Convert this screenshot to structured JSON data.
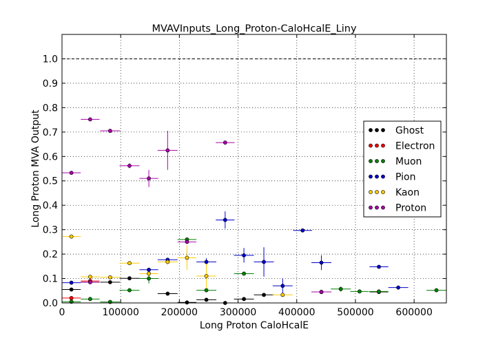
{
  "chart_data": {
    "type": "scatter",
    "title": "MVAVInputs_Long_Proton-CaloHcalE_Liny",
    "xlabel": "Long Proton CaloHcalE",
    "ylabel": "Long Proton MVA Output",
    "xlim": [
      0,
      655000
    ],
    "ylim": [
      0,
      1.1
    ],
    "xticks": [
      0,
      100000,
      200000,
      300000,
      400000,
      500000,
      600000
    ],
    "xtick_labels": [
      "0",
      "100000",
      "200000",
      "300000",
      "400000",
      "500000",
      "600000"
    ],
    "yticks": [
      0,
      0.1,
      0.2,
      0.3,
      0.4,
      0.5,
      0.6,
      0.7,
      0.8,
      0.9,
      1.0
    ],
    "ytick_labels": [
      "0.0",
      "0.1",
      "0.2",
      "0.3",
      "0.4",
      "0.5",
      "0.6",
      "0.7",
      "0.8",
      "0.9",
      "1.0"
    ],
    "grid": true,
    "reference_line": 1.0,
    "legend_position": "right",
    "series": [
      {
        "name": "Ghost",
        "color": "#000000",
        "points": [
          {
            "x": 16000,
            "y": 0.055,
            "xerr": 16000,
            "yerr": 0.004
          },
          {
            "x": 48000,
            "y": 0.085,
            "xerr": 16000,
            "yerr": 0.005
          },
          {
            "x": 82000,
            "y": 0.085,
            "xerr": 17000,
            "yerr": 0.006
          },
          {
            "x": 115000,
            "y": 0.101,
            "xerr": 17000,
            "yerr": 0.006
          },
          {
            "x": 180000,
            "y": 0.038,
            "xerr": 17000,
            "yerr": 0.005
          },
          {
            "x": 213000,
            "y": 0.002,
            "xerr": 16000,
            "yerr": 0.003
          },
          {
            "x": 246000,
            "y": 0.013,
            "xerr": 17000,
            "yerr": 0.004
          },
          {
            "x": 278000,
            "y": 0.0,
            "xerr": 16000,
            "yerr": 0.003
          },
          {
            "x": 310000,
            "y": 0.016,
            "xerr": 17000,
            "yerr": 0.004
          },
          {
            "x": 344000,
            "y": 0.033,
            "xerr": 17000,
            "yerr": 0.004
          },
          {
            "x": 442000,
            "y": 0.045,
            "xerr": 17000,
            "yerr": 0.004
          },
          {
            "x": 540000,
            "y": 0.045,
            "xerr": 16000,
            "yerr": 0.004
          }
        ]
      },
      {
        "name": "Electron",
        "color": "#ff0000",
        "points": [
          {
            "x": 16000,
            "y": 0.02,
            "xerr": 16000,
            "yerr": 0.006
          },
          {
            "x": 48000,
            "y": 0.09,
            "xerr": 16000,
            "yerr": 0.012
          },
          {
            "x": 442000,
            "y": 0.045,
            "xerr": 17000,
            "yerr": 0.004
          }
        ]
      },
      {
        "name": "Muon",
        "color": "#008000",
        "points": [
          {
            "x": 16000,
            "y": 0.005,
            "xerr": 16000,
            "yerr": 0.003
          },
          {
            "x": 48000,
            "y": 0.016,
            "xerr": 16000,
            "yerr": 0.004
          },
          {
            "x": 82000,
            "y": 0.004,
            "xerr": 17000,
            "yerr": 0.003
          },
          {
            "x": 115000,
            "y": 0.052,
            "xerr": 17000,
            "yerr": 0.006
          },
          {
            "x": 148000,
            "y": 0.1,
            "xerr": 16000,
            "yerr": 0.02
          },
          {
            "x": 213000,
            "y": 0.26,
            "xerr": 16000,
            "yerr": 0.008
          },
          {
            "x": 246000,
            "y": 0.052,
            "xerr": 17000,
            "yerr": 0.006
          },
          {
            "x": 310000,
            "y": 0.12,
            "xerr": 17000,
            "yerr": 0.005
          },
          {
            "x": 475000,
            "y": 0.057,
            "xerr": 17000,
            "yerr": 0.01
          },
          {
            "x": 507000,
            "y": 0.047,
            "xerr": 16000,
            "yerr": 0.004
          },
          {
            "x": 540000,
            "y": 0.047,
            "xerr": 16000,
            "yerr": 0.004
          },
          {
            "x": 638000,
            "y": 0.052,
            "xerr": 17000,
            "yerr": 0.004
          }
        ]
      },
      {
        "name": "Pion",
        "color": "#0000cc",
        "points": [
          {
            "x": 16000,
            "y": 0.083,
            "xerr": 16000,
            "yerr": 0.004
          },
          {
            "x": 148000,
            "y": 0.136,
            "xerr": 16000,
            "yerr": 0.006
          },
          {
            "x": 180000,
            "y": 0.177,
            "xerr": 17000,
            "yerr": 0.006
          },
          {
            "x": 246000,
            "y": 0.168,
            "xerr": 17000,
            "yerr": 0.015
          },
          {
            "x": 278000,
            "y": 0.34,
            "xerr": 16000,
            "yerr": 0.035
          },
          {
            "x": 310000,
            "y": 0.195,
            "xerr": 17000,
            "yerr": 0.03
          },
          {
            "x": 344000,
            "y": 0.168,
            "xerr": 17000,
            "yerr": 0.06
          },
          {
            "x": 376000,
            "y": 0.07,
            "xerr": 17000,
            "yerr": 0.03
          },
          {
            "x": 410000,
            "y": 0.297,
            "xerr": 16000,
            "yerr": 0.004
          },
          {
            "x": 442000,
            "y": 0.165,
            "xerr": 17000,
            "yerr": 0.03
          },
          {
            "x": 540000,
            "y": 0.148,
            "xerr": 16000,
            "yerr": 0.005
          },
          {
            "x": 573000,
            "y": 0.063,
            "xerr": 17000,
            "yerr": 0.004
          }
        ]
      },
      {
        "name": "Kaon",
        "color": "#ffcc00",
        "points": [
          {
            "x": 16000,
            "y": 0.272,
            "xerr": 16000,
            "yerr": 0.004
          },
          {
            "x": 48000,
            "y": 0.107,
            "xerr": 16000,
            "yerr": 0.006
          },
          {
            "x": 82000,
            "y": 0.105,
            "xerr": 17000,
            "yerr": 0.006
          },
          {
            "x": 115000,
            "y": 0.163,
            "xerr": 17000,
            "yerr": 0.006
          },
          {
            "x": 148000,
            "y": 0.12,
            "xerr": 16000,
            "yerr": 0.006
          },
          {
            "x": 180000,
            "y": 0.168,
            "xerr": 17000,
            "yerr": 0.01
          },
          {
            "x": 213000,
            "y": 0.185,
            "xerr": 16000,
            "yerr": 0.05
          },
          {
            "x": 246000,
            "y": 0.11,
            "xerr": 17000,
            "yerr": 0.05
          },
          {
            "x": 376000,
            "y": 0.033,
            "xerr": 17000,
            "yerr": 0.004
          }
        ]
      },
      {
        "name": "Proton",
        "color": "#aa00aa",
        "points": [
          {
            "x": 16000,
            "y": 0.533,
            "xerr": 16000,
            "yerr": 0.004
          },
          {
            "x": 48000,
            "y": 0.752,
            "xerr": 16000,
            "yerr": 0.004
          },
          {
            "x": 48000,
            "y": 0.085,
            "xerr": 16000,
            "yerr": 0.004
          },
          {
            "x": 82000,
            "y": 0.705,
            "xerr": 17000,
            "yerr": 0.004
          },
          {
            "x": 115000,
            "y": 0.562,
            "xerr": 17000,
            "yerr": 0.01
          },
          {
            "x": 148000,
            "y": 0.51,
            "xerr": 16000,
            "yerr": 0.035
          },
          {
            "x": 180000,
            "y": 0.625,
            "xerr": 17000,
            "yerr": 0.08
          },
          {
            "x": 213000,
            "y": 0.25,
            "xerr": 16000,
            "yerr": 0.008
          },
          {
            "x": 278000,
            "y": 0.657,
            "xerr": 16000,
            "yerr": 0.004
          },
          {
            "x": 442000,
            "y": 0.045,
            "xerr": 17000,
            "yerr": 0.004
          }
        ]
      }
    ]
  }
}
